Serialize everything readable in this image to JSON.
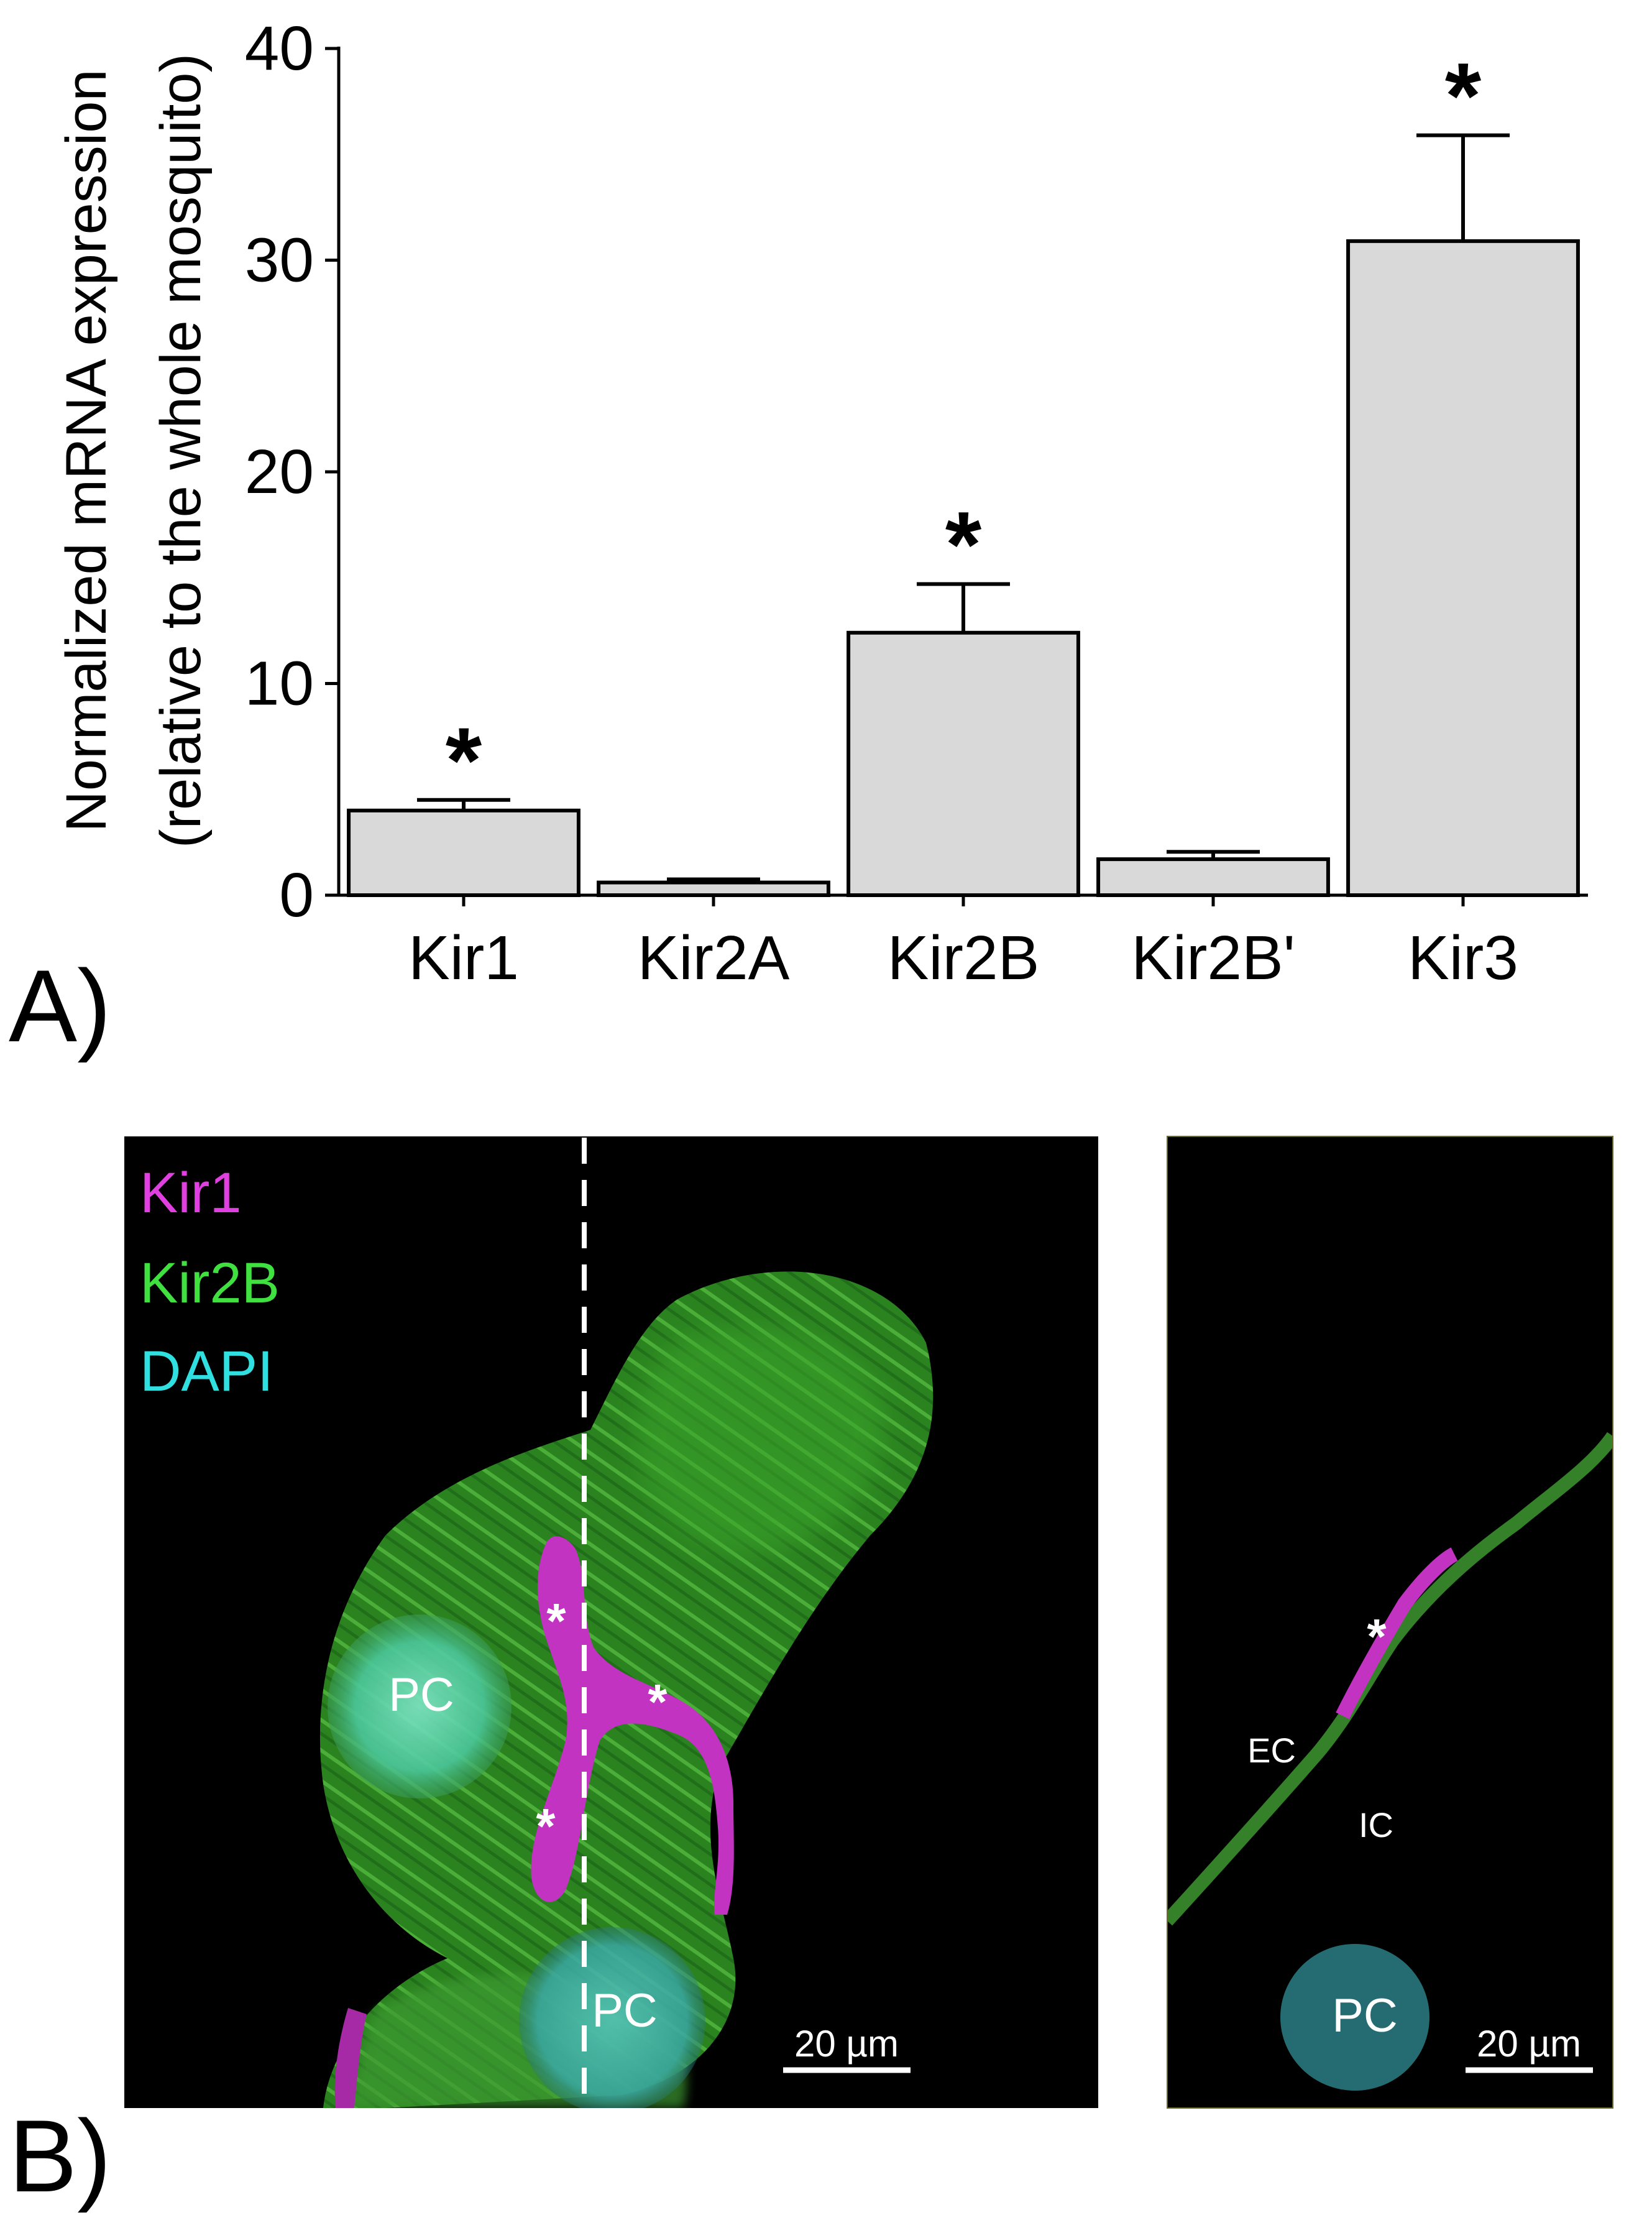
{
  "panel_a_label": "A)",
  "panel_b_label": "B)",
  "chart_data": {
    "type": "bar",
    "ylabel_line1": "Normalized mRNA expression",
    "ylabel_line2": "(relative to the whole mosquito)",
    "xlabel": "",
    "ylim": [
      0,
      40
    ],
    "yticks": [
      0,
      10,
      20,
      30,
      40
    ],
    "categories": [
      "Kir1",
      "Kir2A",
      "Kir2B",
      "Kir2B'",
      "Kir3"
    ],
    "values": [
      4.0,
      0.6,
      12.4,
      1.7,
      30.9
    ],
    "errors": [
      0.5,
      0.15,
      2.3,
      0.35,
      5.0
    ],
    "significance": [
      "*",
      "",
      "*",
      "",
      "*"
    ],
    "bar_fill": "#d9d9d9",
    "grid": false,
    "legend": "none"
  },
  "micrograph_left": {
    "legend": [
      {
        "text": "Kir1",
        "color": "#e040e0"
      },
      {
        "text": "Kir2B",
        "color": "#40e040"
      },
      {
        "text": "DAPI",
        "color": "#30e0e0"
      }
    ],
    "labels": {
      "pc_top": "PC",
      "pc_bottom": "PC",
      "asterisk": "*"
    },
    "scale_bar": "20 µm"
  },
  "micrograph_right": {
    "labels": {
      "ec": "EC",
      "ic": "IC",
      "pc": "PC",
      "asterisk": "*"
    },
    "scale_bar": "20 µm"
  }
}
